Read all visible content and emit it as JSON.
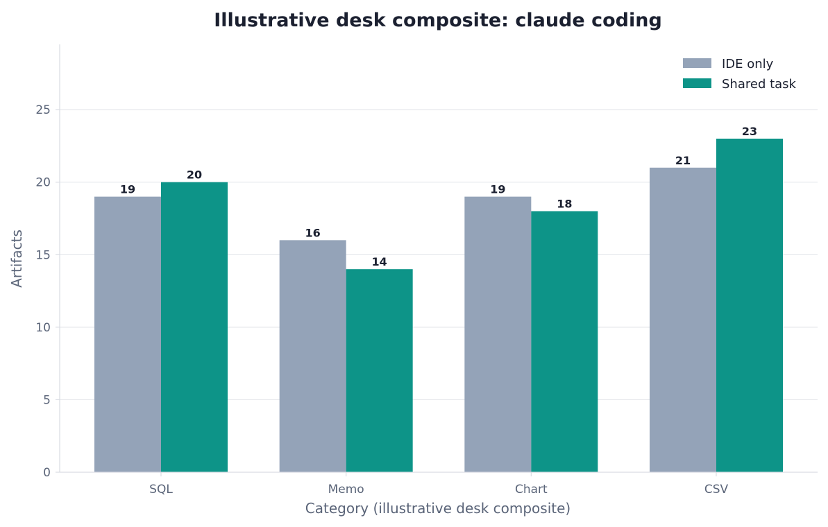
{
  "chart_data": {
    "type": "bar",
    "title": "Illustrative desk composite: claude coding",
    "xlabel": "Category (illustrative desk composite)",
    "ylabel": "Artifacts",
    "categories": [
      "SQL",
      "Memo",
      "Chart",
      "CSV"
    ],
    "series": [
      {
        "name": "IDE only",
        "values": [
          19,
          16,
          19,
          21
        ],
        "color": "#94a3b8"
      },
      {
        "name": "Shared task",
        "values": [
          20,
          14,
          18,
          23
        ],
        "color": "#0d9488"
      }
    ],
    "ylim": [
      0,
      29.5
    ],
    "yticks": [
      0,
      5,
      10,
      15,
      20,
      25
    ],
    "grid": true,
    "legend_position": "top-right",
    "colors": {
      "grid": "#e5e7eb",
      "axis": "#d9dce3",
      "text_dark": "#1b2030",
      "text_muted": "#5a6478"
    }
  }
}
